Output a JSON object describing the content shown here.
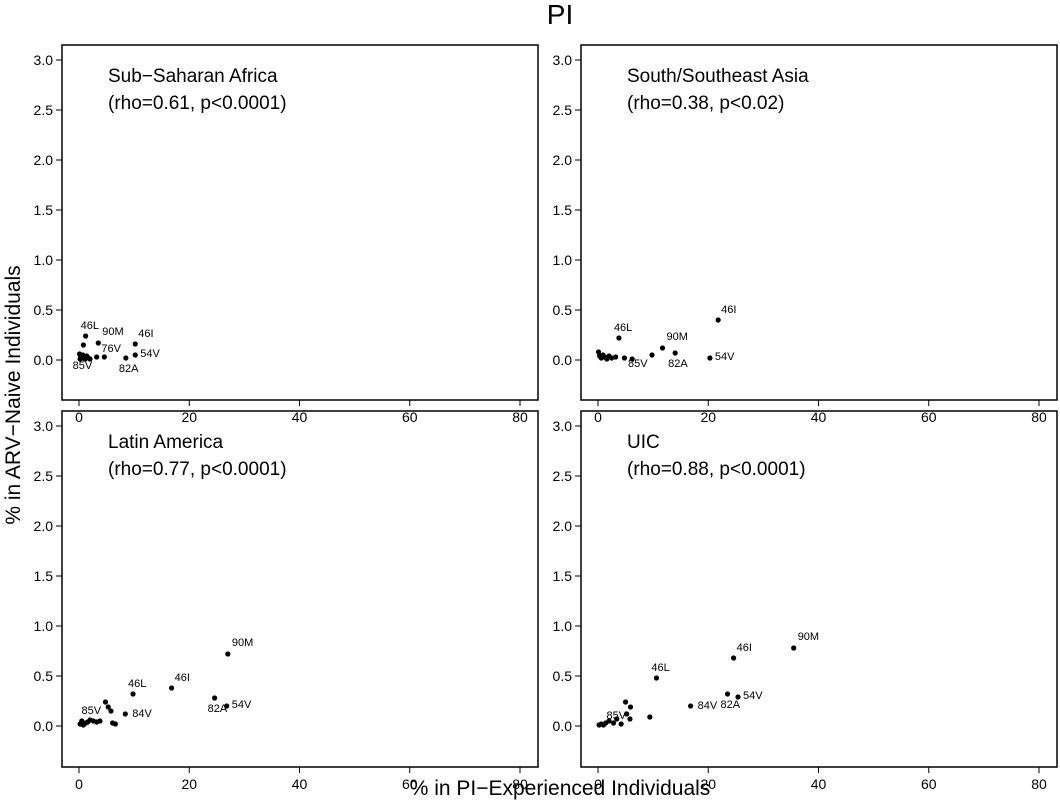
{
  "figure": {
    "title": "PI",
    "xlabel": "% in PI−Experienced Individuals",
    "ylabel": "% in ARV−Naive Individuals"
  },
  "chart_data": [
    {
      "type": "scatter",
      "panel": "top-left",
      "title": "Sub−Saharan Africa",
      "subtitle": "(rho=0.61, p<0.0001)",
      "xlim": [
        0,
        80
      ],
      "ylim": [
        0,
        3.0
      ],
      "xticks": [
        "0",
        "20",
        "40",
        "60",
        "80"
      ],
      "yticks": [
        "0.0",
        "0.5",
        "1.0",
        "1.5",
        "2.0",
        "2.5",
        "3.0"
      ],
      "points": [
        {
          "x": 1.2,
          "y": 0.24,
          "label": "46L"
        },
        {
          "x": 3.5,
          "y": 0.17,
          "label": "90M"
        },
        {
          "x": 10.2,
          "y": 0.16,
          "label": "46I"
        },
        {
          "x": 10.2,
          "y": 0.05,
          "label": "54V"
        },
        {
          "x": 4.6,
          "y": 0.03,
          "label": "76V"
        },
        {
          "x": 8.5,
          "y": 0.02,
          "label": "82A"
        },
        {
          "x": 3.2,
          "y": 0.03,
          "label": "85V"
        },
        {
          "x": 0.8,
          "y": 0.15,
          "label": ""
        },
        {
          "x": 0.1,
          "y": 0.06,
          "label": ""
        },
        {
          "x": 0.3,
          "y": 0.04,
          "label": ""
        },
        {
          "x": 0.5,
          "y": 0.02,
          "label": ""
        },
        {
          "x": 0.7,
          "y": 0.05,
          "label": ""
        },
        {
          "x": 0.9,
          "y": 0.03,
          "label": ""
        },
        {
          "x": 1.1,
          "y": 0.01,
          "label": ""
        },
        {
          "x": 1.4,
          "y": 0.04,
          "label": ""
        },
        {
          "x": 1.7,
          "y": 0.02,
          "label": ""
        },
        {
          "x": 0.2,
          "y": 0.01,
          "label": ""
        },
        {
          "x": 2.0,
          "y": 0.01,
          "label": ""
        }
      ]
    },
    {
      "type": "scatter",
      "panel": "top-right",
      "title": "South/Southeast Asia",
      "subtitle": "(rho=0.38, p<0.02)",
      "xlim": [
        0,
        80
      ],
      "ylim": [
        0,
        3.0
      ],
      "xticks": [
        "0",
        "20",
        "40",
        "60",
        "80"
      ],
      "yticks": [
        "0.0",
        "0.5",
        "1.0",
        "1.5",
        "2.0",
        "2.5",
        "3.0"
      ],
      "points": [
        {
          "x": 21.8,
          "y": 0.4,
          "label": "46I"
        },
        {
          "x": 3.8,
          "y": 0.22,
          "label": "46L"
        },
        {
          "x": 11.7,
          "y": 0.12,
          "label": "90M"
        },
        {
          "x": 14.0,
          "y": 0.07,
          "label": "82A"
        },
        {
          "x": 20.3,
          "y": 0.02,
          "label": "54V"
        },
        {
          "x": 9.8,
          "y": 0.05,
          "label": "85V"
        },
        {
          "x": 0.1,
          "y": 0.08,
          "label": ""
        },
        {
          "x": 0.3,
          "y": 0.04,
          "label": ""
        },
        {
          "x": 0.6,
          "y": 0.02,
          "label": ""
        },
        {
          "x": 0.9,
          "y": 0.05,
          "label": ""
        },
        {
          "x": 1.2,
          "y": 0.03,
          "label": ""
        },
        {
          "x": 1.6,
          "y": 0.01,
          "label": ""
        },
        {
          "x": 2.0,
          "y": 0.04,
          "label": ""
        },
        {
          "x": 2.5,
          "y": 0.02,
          "label": ""
        },
        {
          "x": 3.2,
          "y": 0.03,
          "label": ""
        },
        {
          "x": 4.8,
          "y": 0.02,
          "label": ""
        },
        {
          "x": 6.2,
          "y": 0.01,
          "label": ""
        }
      ]
    },
    {
      "type": "scatter",
      "panel": "bottom-left",
      "title": "Latin America",
      "subtitle": "(rho=0.77, p<0.0001)",
      "xlim": [
        0,
        80
      ],
      "ylim": [
        0,
        3.0
      ],
      "xticks": [
        "0",
        "20",
        "40",
        "60",
        "80"
      ],
      "yticks": [
        "0.0",
        "0.5",
        "1.0",
        "1.5",
        "2.0",
        "2.5",
        "3.0"
      ],
      "points": [
        {
          "x": 27.0,
          "y": 0.72,
          "label": "90M"
        },
        {
          "x": 16.8,
          "y": 0.38,
          "label": "46I"
        },
        {
          "x": 9.8,
          "y": 0.32,
          "label": "46L"
        },
        {
          "x": 24.6,
          "y": 0.28,
          "label": "82A"
        },
        {
          "x": 26.8,
          "y": 0.2,
          "label": "54V"
        },
        {
          "x": 4.8,
          "y": 0.24,
          "label": "85V"
        },
        {
          "x": 8.4,
          "y": 0.12,
          "label": "84V"
        },
        {
          "x": 5.3,
          "y": 0.19,
          "label": ""
        },
        {
          "x": 5.8,
          "y": 0.15,
          "label": ""
        },
        {
          "x": 0.2,
          "y": 0.02,
          "label": ""
        },
        {
          "x": 0.5,
          "y": 0.05,
          "label": ""
        },
        {
          "x": 0.8,
          "y": 0.01,
          "label": ""
        },
        {
          "x": 1.2,
          "y": 0.03,
          "label": ""
        },
        {
          "x": 1.6,
          "y": 0.04,
          "label": ""
        },
        {
          "x": 2.0,
          "y": 0.06,
          "label": ""
        },
        {
          "x": 2.6,
          "y": 0.05,
          "label": ""
        },
        {
          "x": 3.2,
          "y": 0.04,
          "label": ""
        },
        {
          "x": 3.8,
          "y": 0.05,
          "label": ""
        },
        {
          "x": 6.1,
          "y": 0.03,
          "label": ""
        },
        {
          "x": 6.6,
          "y": 0.02,
          "label": ""
        }
      ]
    },
    {
      "type": "scatter",
      "panel": "bottom-right",
      "title": "UIC",
      "subtitle": "(rho=0.88, p<0.0001)",
      "xlim": [
        0,
        80
      ],
      "ylim": [
        0,
        3.0
      ],
      "xticks": [
        "0",
        "20",
        "40",
        "60",
        "80"
      ],
      "yticks": [
        "0.0",
        "0.5",
        "1.0",
        "1.5",
        "2.0",
        "2.5",
        "3.0"
      ],
      "points": [
        {
          "x": 35.5,
          "y": 0.78,
          "label": "90M"
        },
        {
          "x": 24.6,
          "y": 0.68,
          "label": "46I"
        },
        {
          "x": 10.6,
          "y": 0.48,
          "label": "46L"
        },
        {
          "x": 23.5,
          "y": 0.32,
          "label": "82A"
        },
        {
          "x": 25.4,
          "y": 0.29,
          "label": "54V"
        },
        {
          "x": 5.9,
          "y": 0.19,
          "label": "85V"
        },
        {
          "x": 16.8,
          "y": 0.2,
          "label": "84V"
        },
        {
          "x": 5.0,
          "y": 0.24,
          "label": ""
        },
        {
          "x": 9.4,
          "y": 0.09,
          "label": ""
        },
        {
          "x": 5.2,
          "y": 0.12,
          "label": ""
        },
        {
          "x": 5.8,
          "y": 0.07,
          "label": ""
        },
        {
          "x": 0.2,
          "y": 0.01,
          "label": ""
        },
        {
          "x": 0.6,
          "y": 0.02,
          "label": ""
        },
        {
          "x": 1.0,
          "y": 0.01,
          "label": ""
        },
        {
          "x": 1.4,
          "y": 0.03,
          "label": ""
        },
        {
          "x": 2.0,
          "y": 0.05,
          "label": ""
        },
        {
          "x": 2.8,
          "y": 0.03,
          "label": ""
        },
        {
          "x": 3.4,
          "y": 0.07,
          "label": ""
        },
        {
          "x": 4.2,
          "y": 0.02,
          "label": ""
        }
      ]
    }
  ]
}
